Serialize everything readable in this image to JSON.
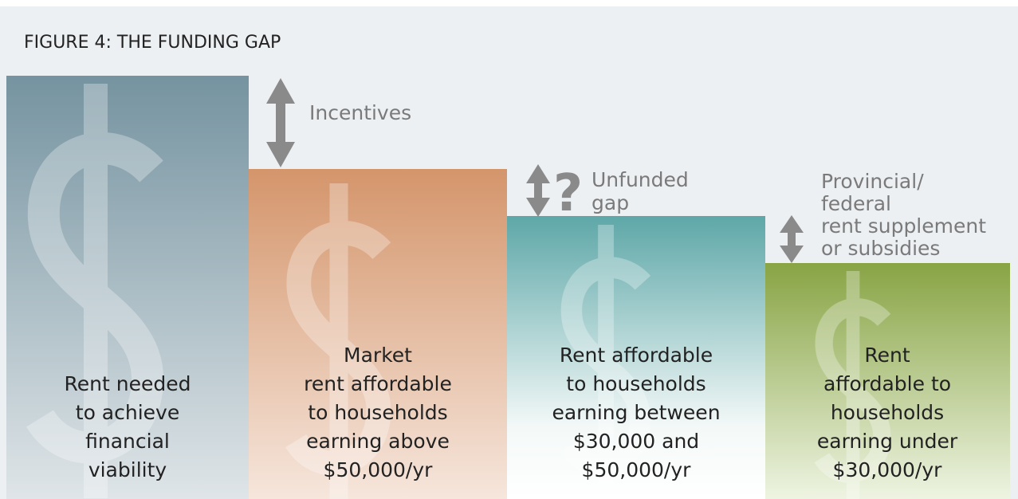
{
  "header": {
    "title": "FIGURE 4: THE FUNDING GAP"
  },
  "columns": [
    {
      "label": [
        "Rent needed",
        "to achieve",
        "financial",
        "viability"
      ]
    },
    {
      "label": [
        "Market",
        "rent affordable",
        "to households",
        "earning above",
        "$50,000/yr"
      ]
    },
    {
      "label": [
        "Rent affordable",
        "to households",
        "earning between",
        "$30,000 and",
        "$50,000/yr"
      ]
    },
    {
      "label": [
        "Rent",
        "affordable to",
        "households",
        "earning under",
        "$30,000/yr"
      ]
    }
  ],
  "annotations": [
    {
      "label": [
        "Incentives"
      ]
    },
    {
      "symbol": "?",
      "label": [
        "Unfunded",
        "gap"
      ]
    },
    {
      "label": [
        "Provincial/",
        "federal",
        "rent supplement",
        "or subsidies"
      ]
    }
  ]
}
